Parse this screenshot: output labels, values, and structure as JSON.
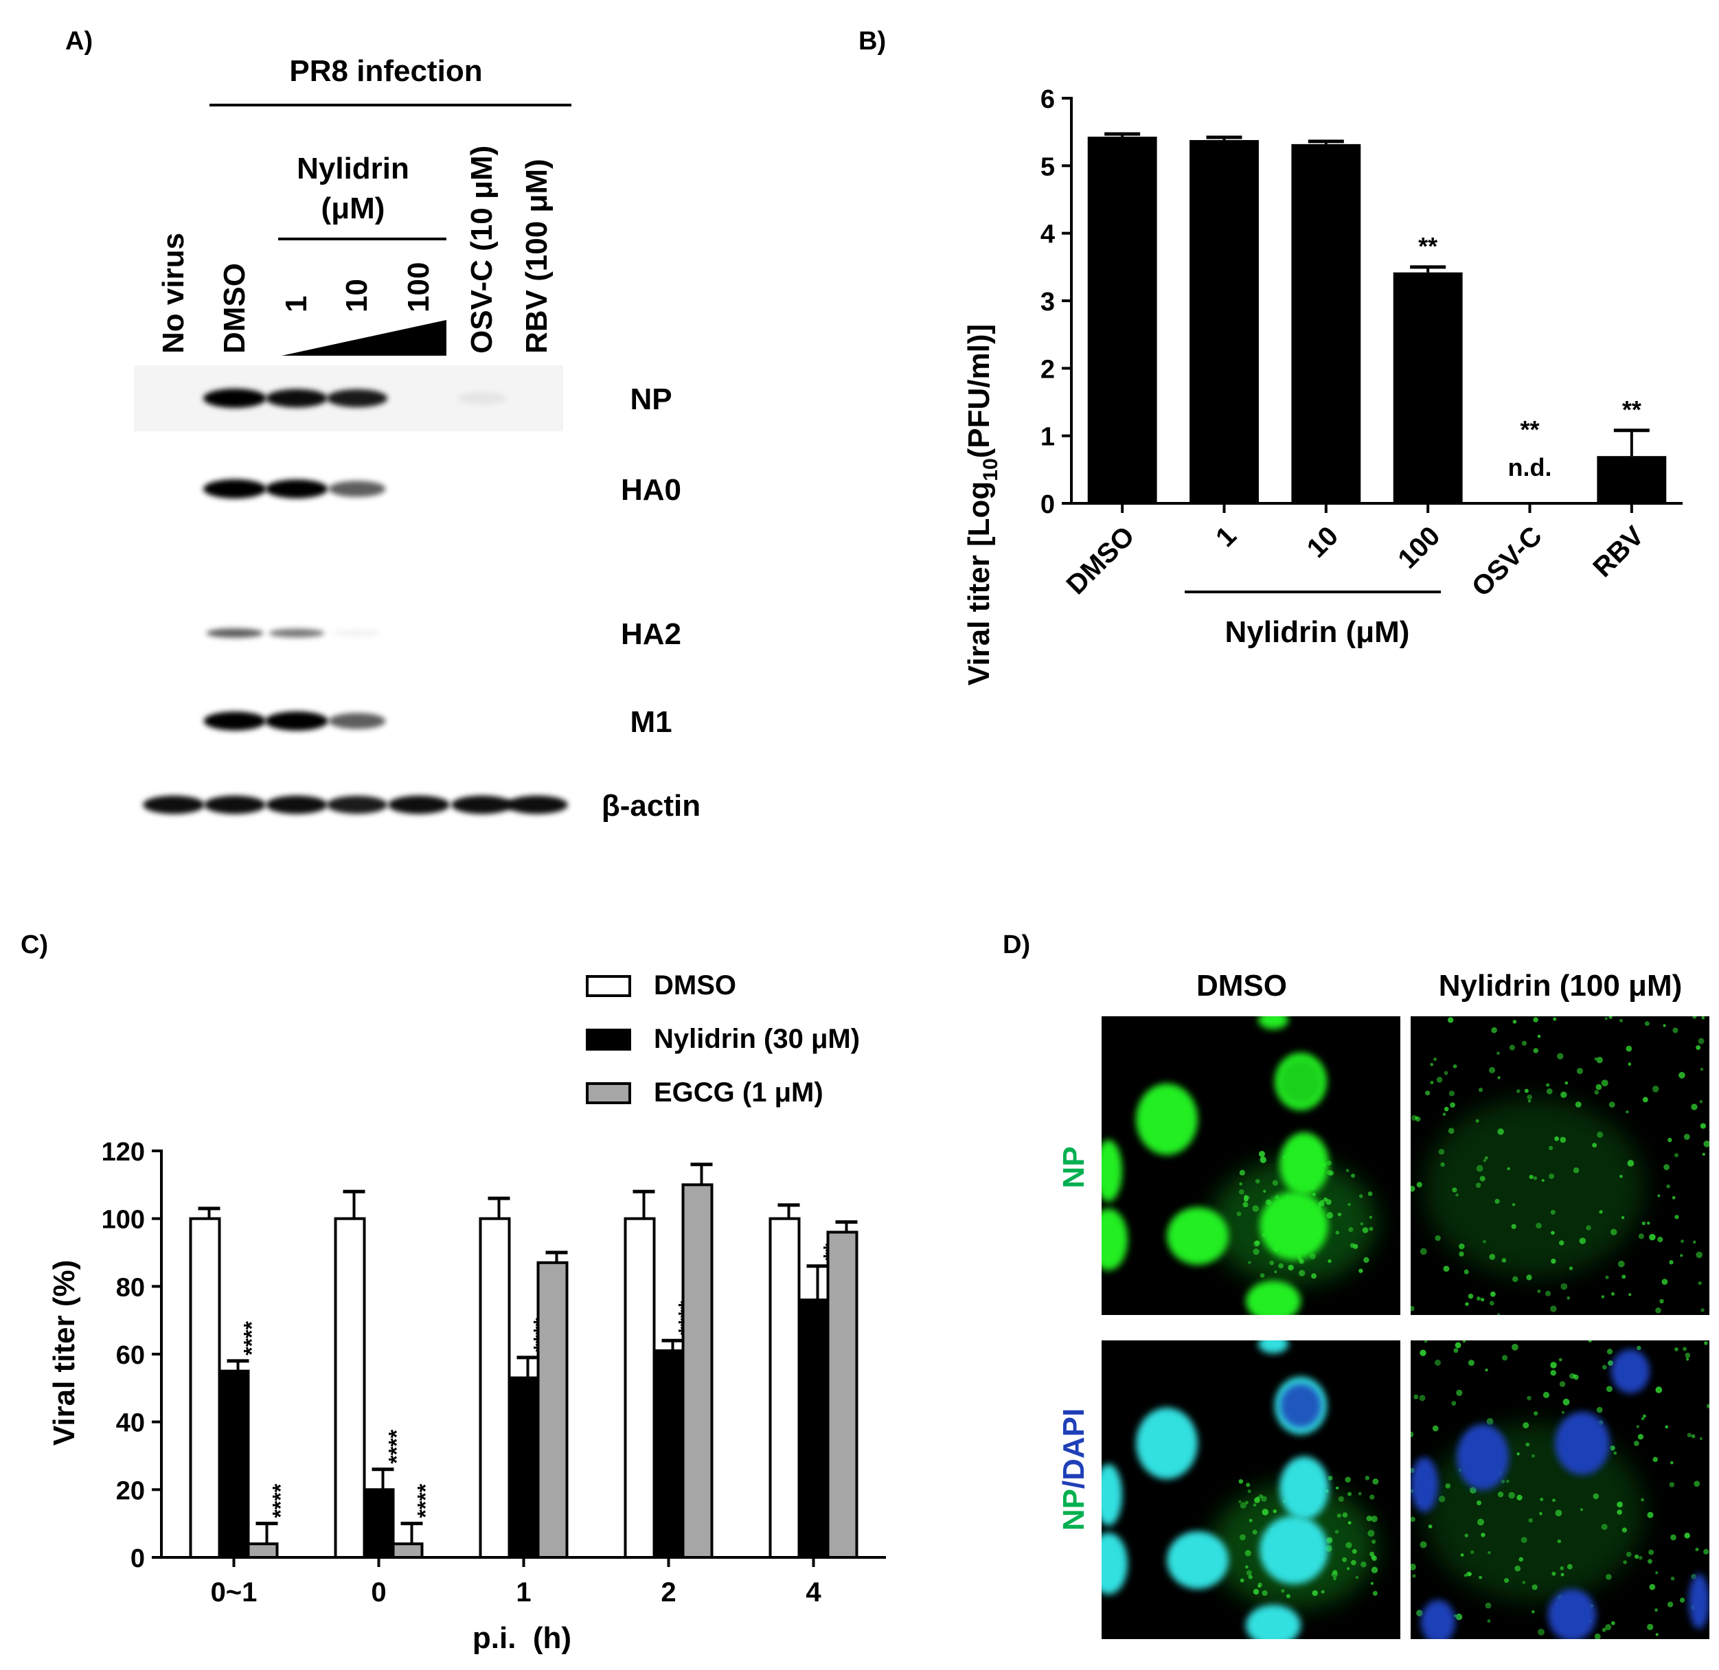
{
  "panel_a": {
    "label": "A)",
    "header": "PR8 infection",
    "drug_group": [
      "Nylidrin",
      "(μM)"
    ],
    "lanes": [
      "No virus",
      "DMSO",
      "1",
      "10",
      "100",
      "OSV-C (10 μM)",
      "RBV (100 μM)"
    ],
    "bands": [
      {
        "name": "NP",
        "intensity": [
          0,
          1.0,
          0.9,
          0.85,
          0,
          0.06,
          0
        ]
      },
      {
        "name": "HA0",
        "intensity": [
          0,
          1.0,
          0.95,
          0.6,
          0,
          0,
          0
        ]
      },
      {
        "name": "HA2",
        "intensity": [
          0,
          0.6,
          0.5,
          0.05,
          0,
          0,
          0
        ]
      },
      {
        "name": "M1",
        "intensity": [
          0,
          0.95,
          1.0,
          0.6,
          0,
          0,
          0
        ]
      },
      {
        "name": "β-actin",
        "intensity": [
          0.9,
          0.9,
          0.9,
          0.85,
          0.9,
          0.9,
          0.9
        ]
      }
    ]
  },
  "panel_d": {
    "label": "D)",
    "columns": [
      "DMSO",
      "Nylidrin (100 μM)"
    ],
    "row_labels": [
      "NP",
      "NP",
      "/DAPI"
    ],
    "colors": {
      "np": "#00b050",
      "dapi": "#1f3fb8",
      "np_cell": "#22ee22",
      "merge_cell": "#33e0e0"
    }
  },
  "chart_data": [
    {
      "type": "bar",
      "panel": "B)",
      "categories": [
        "DMSO",
        "1",
        "10",
        "100",
        "OSV-C",
        "RBV"
      ],
      "values": [
        5.43,
        5.38,
        5.32,
        3.42,
        0,
        0.7
      ],
      "errors": [
        0.04,
        0.04,
        0.04,
        0.08,
        0,
        0.38
      ],
      "annotations": [
        "",
        "",
        "",
        "**",
        "**",
        "**"
      ],
      "nd_label": "n.d.",
      "ylabel_parts": [
        "Viral titer [Log",
        "10",
        "(PFU/ml)]"
      ],
      "group_label": "Nylidrin (μM)",
      "yticks": [
        "0",
        "1",
        "2",
        "3",
        "4",
        "5",
        "6"
      ],
      "ylim": [
        0,
        6
      ],
      "bar_color": "#000000"
    },
    {
      "type": "bar",
      "panel": "C)",
      "categories": [
        "0~1",
        "0",
        "1",
        "2",
        "4"
      ],
      "series": [
        {
          "name": "DMSO",
          "color": "#ffffff",
          "values": [
            100,
            100,
            100,
            100,
            100
          ],
          "errors": [
            3,
            8,
            6,
            8,
            4
          ],
          "annotations": [
            "",
            "",
            "",
            "",
            ""
          ]
        },
        {
          "name": "Nylidrin (30 μM)",
          "color": "#000000",
          "values": [
            55,
            20,
            53,
            61,
            76
          ],
          "errors": [
            3,
            6,
            6,
            3,
            10
          ],
          "annotations": [
            "****",
            "****",
            "****",
            "****",
            "**"
          ]
        },
        {
          "name": "EGCG (1 μM)",
          "color": "#a6a6a6",
          "values": [
            4,
            4,
            87,
            110,
            96
          ],
          "errors": [
            6,
            6,
            3,
            6,
            3
          ],
          "annotations": [
            "****",
            "****",
            "",
            "",
            ""
          ]
        }
      ],
      "xlabel": "p.i.  (h)",
      "ylabel": "Viral titer (%)",
      "yticks": [
        "0",
        "20",
        "40",
        "60",
        "80",
        "100",
        "120"
      ],
      "ylim": [
        0,
        120
      ]
    }
  ]
}
